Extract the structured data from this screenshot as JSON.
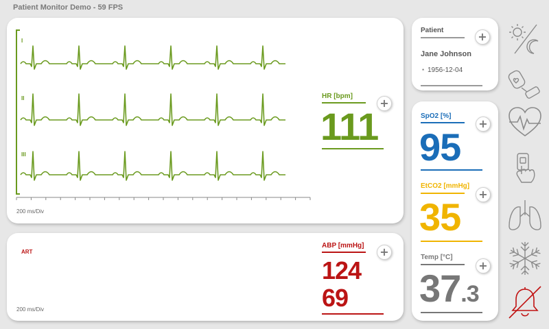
{
  "app": {
    "title": "Patient Monitor Demo - 59 FPS"
  },
  "ecg": {
    "leads": [
      "I",
      "II",
      "III"
    ],
    "scale": "200 ms/Div",
    "color": "#6a9a1e"
  },
  "art": {
    "lead": "ART",
    "scale": "200 ms/Div",
    "color": "#bb1414"
  },
  "hr": {
    "label": "HR [bpm]",
    "value": "111",
    "color": "#6a9a1e"
  },
  "abp": {
    "label": "ABP [mmHg]",
    "systolic": "124",
    "diastolic": "69",
    "color": "#bb1414"
  },
  "patient": {
    "label": "Patient",
    "name": "Jane Johnson",
    "birth_marker": "*",
    "birth": "1956-12-04"
  },
  "spo2": {
    "label": "SpO2 [%]",
    "value": "95",
    "color": "#1a6db8"
  },
  "etco2": {
    "label": "EtCO2 [mmHg]",
    "value": "35",
    "color": "#f0b400"
  },
  "temp": {
    "label": "Temp [°C]",
    "value_int": "37",
    "value_dec": ".3",
    "color": "#777777"
  },
  "sidebar_icons": [
    "day-night-icon",
    "iv-bag-icon",
    "heart-pulse-icon",
    "touch-device-icon",
    "lungs-icon",
    "snowflake-icon",
    "alarm-muted-icon"
  ],
  "plus_symbol": "+"
}
